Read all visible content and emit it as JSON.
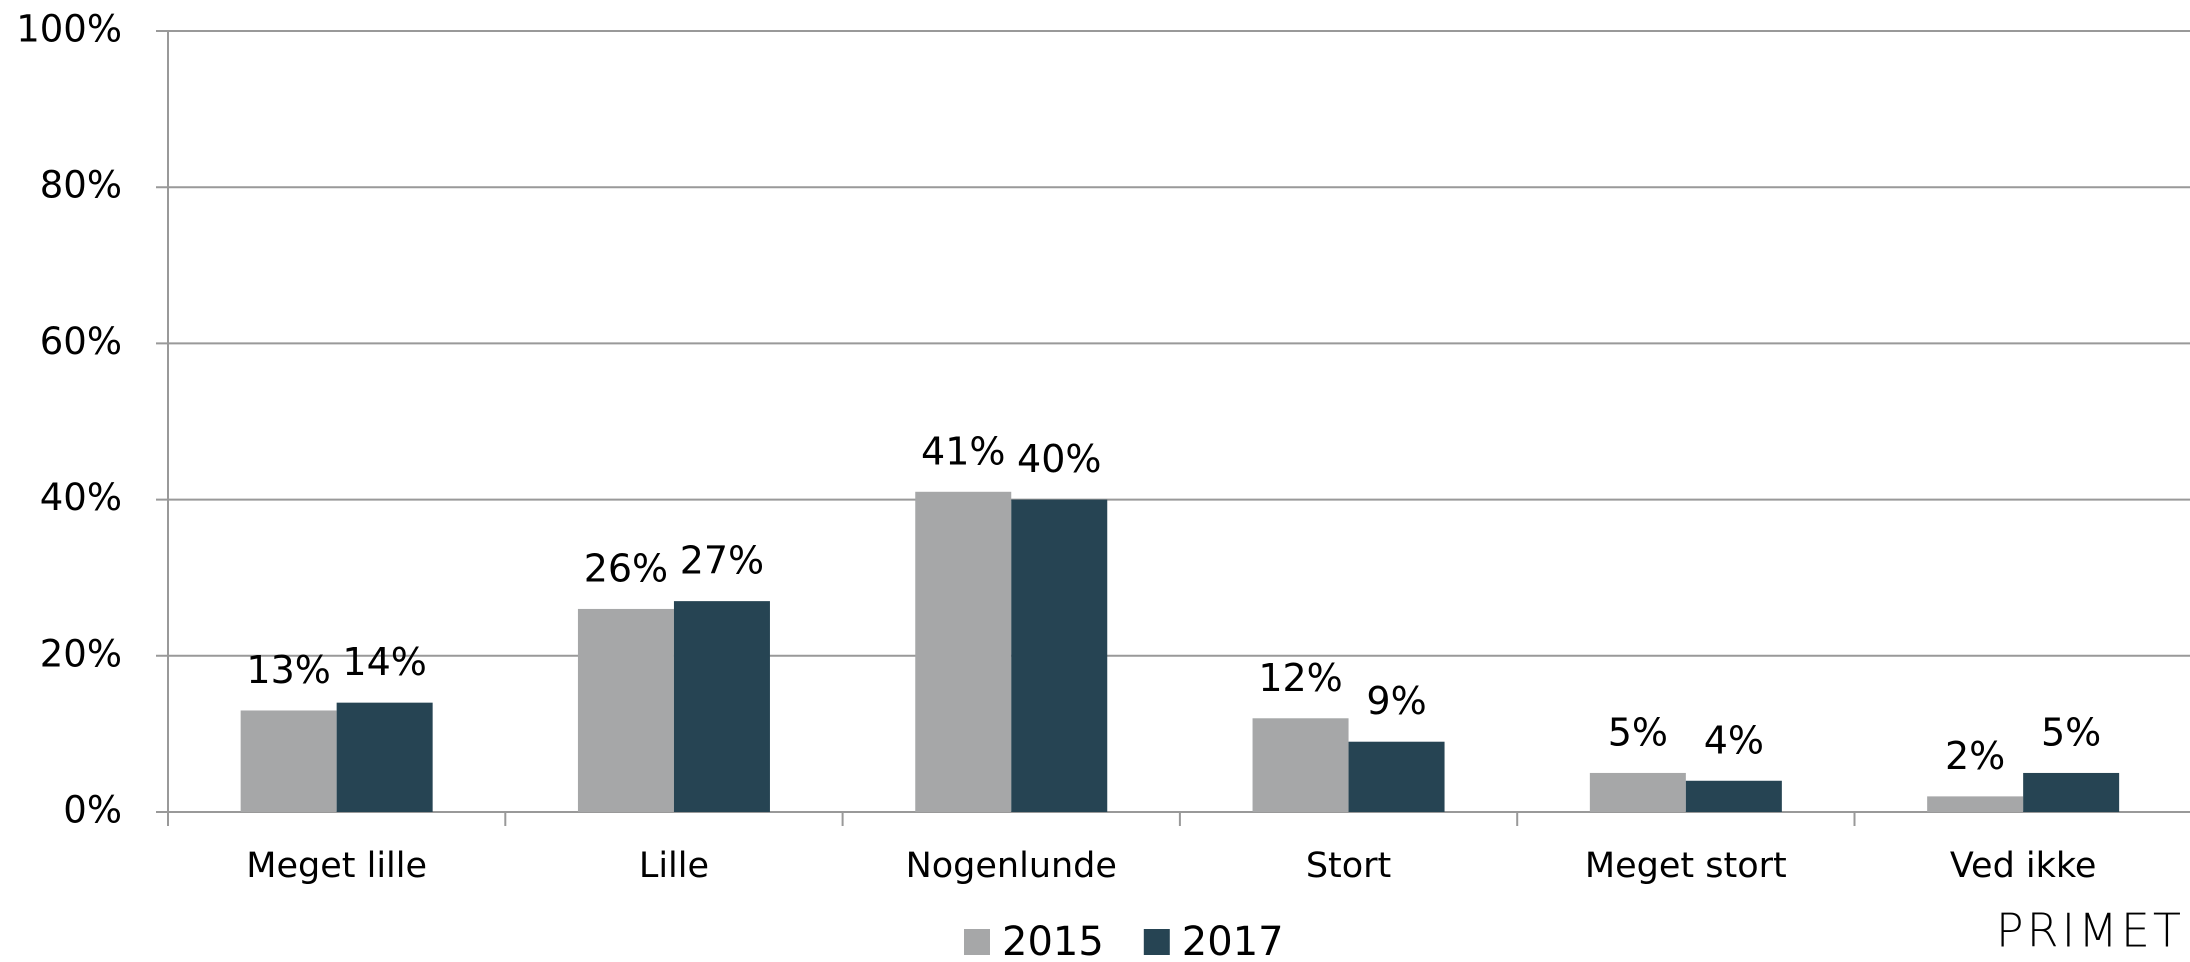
{
  "chart_data": {
    "type": "bar",
    "categories": [
      "Meget lille",
      "Lille",
      "Nogenlunde",
      "Stort",
      "Meget stort",
      "Ved ikke"
    ],
    "series": [
      {
        "name": "2015",
        "color": "#a6a7a8",
        "values": [
          13,
          26,
          41,
          12,
          5,
          2
        ],
        "value_labels": [
          "13%",
          "26%",
          "41%",
          "12%",
          "5%",
          "2%"
        ]
      },
      {
        "name": "2017",
        "color": "#264453",
        "values": [
          14,
          27,
          40,
          9,
          4,
          5
        ],
        "value_labels": [
          "14%",
          "27%",
          "40%",
          "9%",
          "4%",
          "5%"
        ]
      }
    ],
    "ylim": [
      0,
      100
    ],
    "yticks": [
      {
        "value": 0,
        "label": "0%"
      },
      {
        "value": 20,
        "label": "20%"
      },
      {
        "value": 40,
        "label": "40%"
      },
      {
        "value": 60,
        "label": "60%"
      },
      {
        "value": 80,
        "label": "80%"
      },
      {
        "value": 100,
        "label": "100%"
      }
    ],
    "grid": true,
    "legend": "bottom",
    "logo": "PRIMET"
  }
}
